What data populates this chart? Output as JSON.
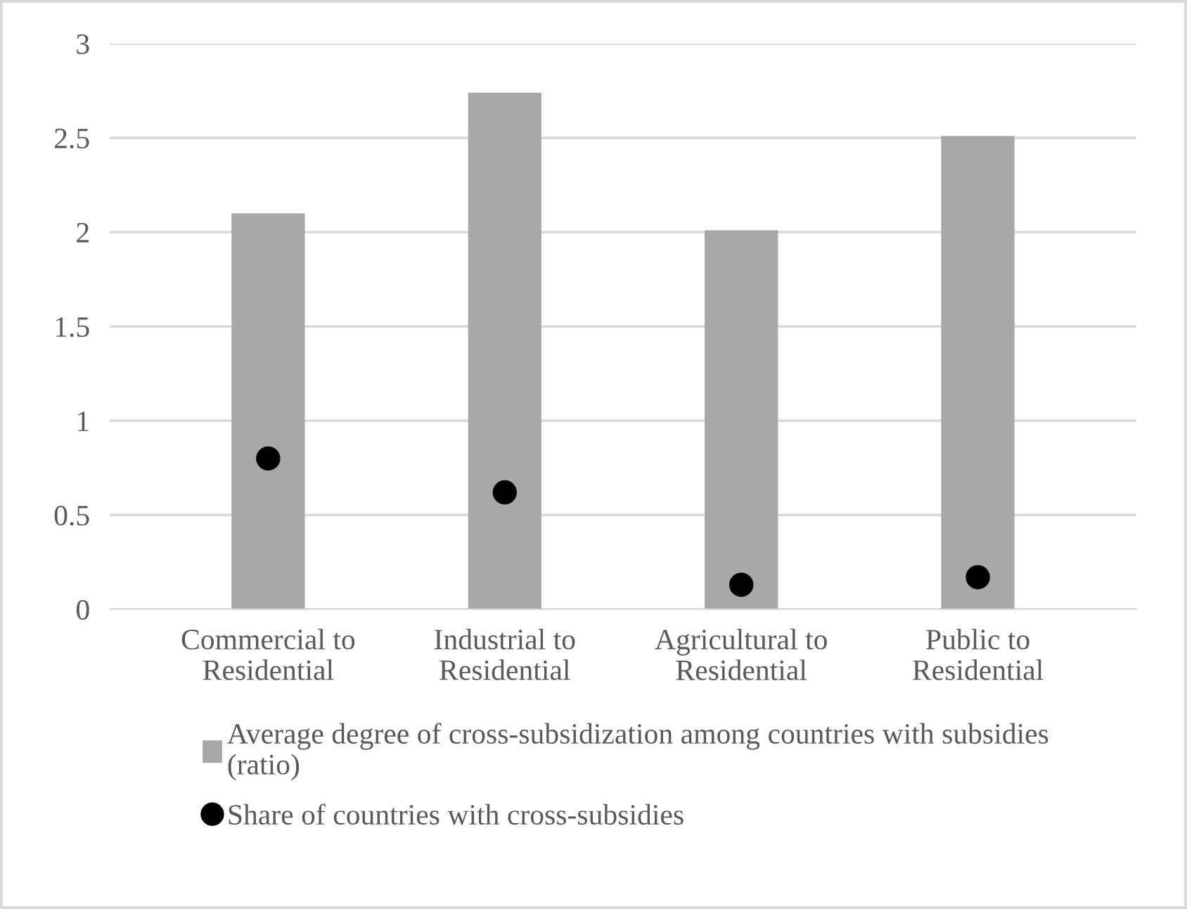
{
  "chart_data": {
    "type": "bar",
    "categories": [
      "Commercial to\nResidential",
      "Industrial to\nResidential",
      "Agricultural to\nResidential",
      "Public to\nResidential"
    ],
    "series": [
      {
        "name": "Average degree of cross-subsidization among countries with subsidies\n(ratio)",
        "color": "#a9a8a7",
        "values": [
          2.1,
          2.74,
          2.01,
          2.51
        ]
      },
      {
        "name": "Share of countries with cross-subsidies",
        "type": "scatter",
        "color": "#000000",
        "marker": "circle",
        "values": [
          0.8,
          0.62,
          0.13,
          0.17
        ]
      }
    ],
    "ylim": [
      0,
      3
    ],
    "yticks": [
      0,
      0.5,
      1,
      1.5,
      2,
      2.5,
      3
    ],
    "grid": "y",
    "legend": "bottom"
  }
}
